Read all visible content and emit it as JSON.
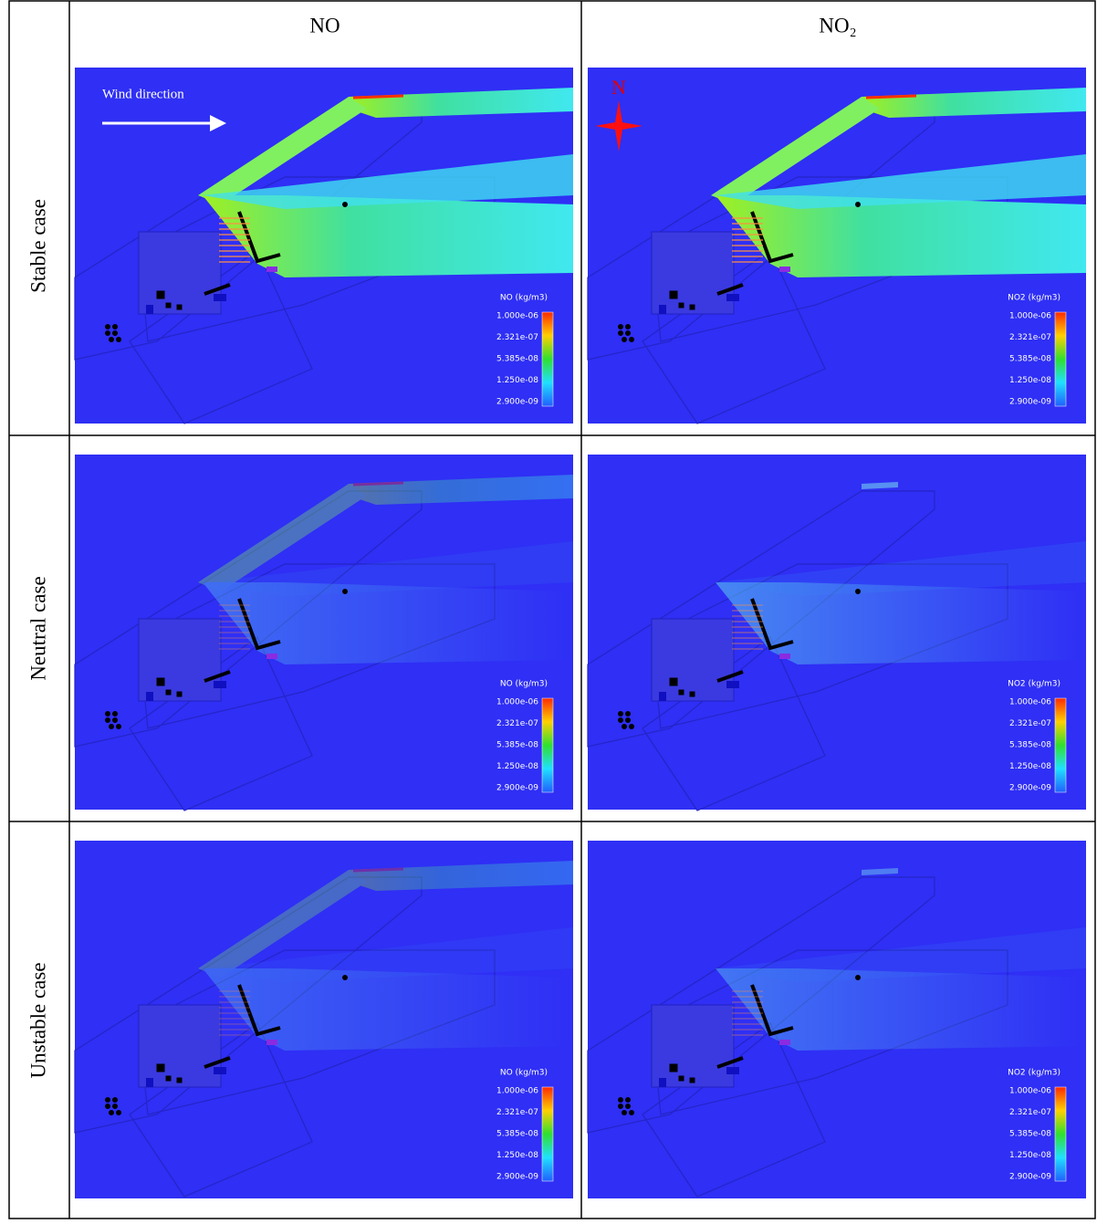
{
  "columns": [
    {
      "header": "NO",
      "legend_title": "NO (kg/m3)"
    },
    {
      "header": "NO₂",
      "legend_title": "NO2 (kg/m3)"
    }
  ],
  "rows": [
    {
      "label": "Stable case"
    },
    {
      "label": "Neutral case"
    },
    {
      "label": "Unstable case"
    }
  ],
  "legend": {
    "labels": [
      "1.000e-06",
      "2.321e-07",
      "5.385e-08",
      "1.250e-08",
      "2.900e-09"
    ]
  },
  "annotations": {
    "wind": "Wind direction",
    "north": "N"
  }
}
